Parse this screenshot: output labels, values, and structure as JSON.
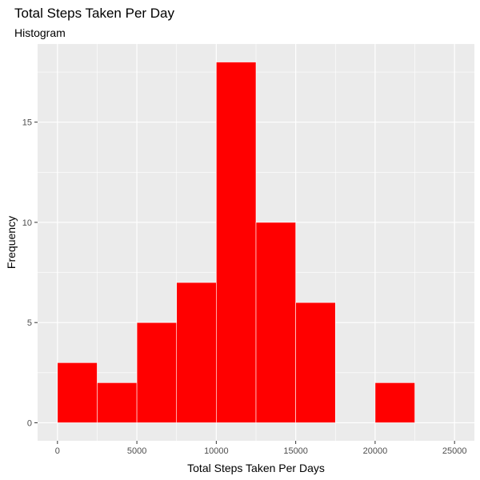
{
  "chart_data": {
    "type": "bar",
    "title": "Total Steps Taken Per Day",
    "subtitle": "Histogram",
    "xlabel": "Total Steps Taken Per Days",
    "ylabel": "Frequency",
    "bins": [
      {
        "start": 0,
        "end": 2500,
        "count": 3
      },
      {
        "start": 2500,
        "end": 5000,
        "count": 2
      },
      {
        "start": 5000,
        "end": 7500,
        "count": 5
      },
      {
        "start": 7500,
        "end": 10000,
        "count": 7
      },
      {
        "start": 10000,
        "end": 12500,
        "count": 18
      },
      {
        "start": 12500,
        "end": 15000,
        "count": 10
      },
      {
        "start": 15000,
        "end": 17500,
        "count": 6
      },
      {
        "start": 17500,
        "end": 20000,
        "count": 0
      },
      {
        "start": 20000,
        "end": 22500,
        "count": 2
      }
    ],
    "xlim": [
      -1250,
      26250
    ],
    "ylim": [
      -0.9,
      18.9
    ],
    "x_ticks": [
      0,
      5000,
      10000,
      15000,
      20000,
      25000
    ],
    "x_tick_labels": [
      "0",
      "5000",
      "10000",
      "15000",
      "20000",
      "25000"
    ],
    "y_ticks": [
      0,
      5,
      10,
      15
    ],
    "y_tick_labels": [
      "0",
      "5",
      "10",
      "15"
    ],
    "grid": true,
    "colors": {
      "bar_fill": "#ff0000",
      "bar_outline": "#ffffff",
      "panel_background": "#ebebeb",
      "grid_major": "#ffffff",
      "grid_minor": "#f5f5f5",
      "tick_mark": "#333333"
    }
  }
}
